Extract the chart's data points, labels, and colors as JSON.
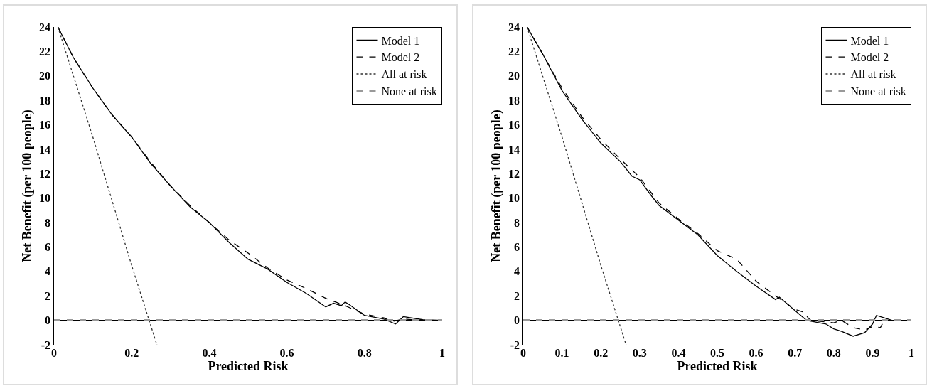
{
  "chart_data": [
    {
      "type": "line",
      "xlabel": "Predicted Risk",
      "ylabel": "Net Benefit (per 100 people)",
      "xlim": [
        0,
        1
      ],
      "ylim": [
        -2,
        24
      ],
      "xticks": [
        0,
        0.2,
        0.4,
        0.6,
        0.8,
        1
      ],
      "yticks": [
        -2,
        0,
        2,
        4,
        6,
        8,
        10,
        12,
        14,
        16,
        18,
        20,
        22,
        24
      ],
      "grid": false,
      "legend": "top right",
      "series": [
        {
          "name": "Model 1",
          "color": "#000000",
          "line_style": "solid",
          "x": [
            0.01,
            0.05,
            0.1,
            0.15,
            0.2,
            0.25,
            0.3,
            0.35,
            0.4,
            0.45,
            0.5,
            0.55,
            0.6,
            0.65,
            0.7,
            0.72,
            0.74,
            0.75,
            0.76,
            0.8,
            0.85,
            0.88,
            0.9,
            0.95,
            1
          ],
          "values": [
            24,
            21.5,
            19,
            16.8,
            15,
            12.8,
            11,
            9.3,
            8,
            6.4,
            5,
            4.2,
            3.1,
            2.2,
            1.1,
            1.4,
            1.2,
            1.5,
            1.3,
            0.4,
            0.1,
            -0.3,
            0.3,
            0.05,
            0
          ]
        },
        {
          "name": "Model 2",
          "color": "#000000",
          "line_style": "dashed",
          "x": [
            0.01,
            0.05,
            0.1,
            0.15,
            0.2,
            0.25,
            0.3,
            0.35,
            0.4,
            0.45,
            0.5,
            0.55,
            0.6,
            0.65,
            0.7,
            0.75,
            0.8,
            0.85,
            0.87,
            0.9,
            0.95,
            1
          ],
          "values": [
            24,
            21.5,
            19,
            16.8,
            15,
            12.9,
            11,
            9.4,
            8,
            6.6,
            5.5,
            4.3,
            3.3,
            2.6,
            1.8,
            1.2,
            0.5,
            0.2,
            -0.1,
            0.1,
            0,
            0
          ]
        },
        {
          "name": "All at risk",
          "color": "#333333",
          "line_style": "dotted",
          "x": [
            0.01,
            0.1,
            0.2,
            0.265
          ],
          "values": [
            24,
            15,
            4.5,
            -2
          ]
        },
        {
          "name": "None at risk",
          "color": "#999999",
          "line_style": "dashed",
          "x": [
            0,
            1
          ],
          "values": [
            0,
            0
          ]
        }
      ]
    },
    {
      "type": "line",
      "xlabel": "Predicted Risk",
      "ylabel": "Net Benefit (per 100 people)",
      "xlim": [
        0,
        1
      ],
      "ylim": [
        -2,
        24
      ],
      "xticks": [
        0,
        0.1,
        0.2,
        0.3,
        0.4,
        0.5,
        0.6,
        0.7,
        0.8,
        0.9,
        1
      ],
      "yticks": [
        -2,
        0,
        2,
        4,
        6,
        8,
        10,
        12,
        14,
        16,
        18,
        20,
        22,
        24
      ],
      "grid": false,
      "legend": "top right",
      "series": [
        {
          "name": "Model 1",
          "color": "#000000",
          "line_style": "solid",
          "x": [
            0.01,
            0.05,
            0.1,
            0.15,
            0.2,
            0.25,
            0.28,
            0.3,
            0.33,
            0.35,
            0.4,
            0.45,
            0.5,
            0.55,
            0.6,
            0.65,
            0.66,
            0.7,
            0.73,
            0.78,
            0.8,
            0.82,
            0.85,
            0.88,
            0.9,
            0.91,
            0.93,
            0.95,
            1
          ],
          "values": [
            24,
            21.8,
            18.8,
            16.5,
            14.5,
            13,
            11.8,
            11.5,
            10.2,
            9.4,
            8.2,
            7,
            5.3,
            4,
            2.8,
            1.7,
            1.9,
            0.8,
            0,
            -0.3,
            -0.7,
            -0.9,
            -1.3,
            -1,
            -0.3,
            0.4,
            0.2,
            0,
            0
          ]
        },
        {
          "name": "Model 2",
          "color": "#000000",
          "line_style": "dashed",
          "x": [
            0.01,
            0.05,
            0.1,
            0.15,
            0.2,
            0.25,
            0.3,
            0.35,
            0.4,
            0.45,
            0.5,
            0.55,
            0.6,
            0.65,
            0.7,
            0.72,
            0.74,
            0.8,
            0.82,
            0.85,
            0.88,
            0.9,
            0.92,
            0.93,
            0.95,
            1
          ],
          "values": [
            24,
            21.8,
            19,
            16.7,
            14.8,
            13.2,
            11.7,
            9.6,
            8.3,
            7.1,
            5.7,
            5,
            3.2,
            2,
            0.9,
            0.7,
            0,
            -0.2,
            0,
            -0.6,
            -0.8,
            -0.5,
            -0.6,
            0,
            0,
            0
          ]
        },
        {
          "name": "All at risk",
          "color": "#333333",
          "line_style": "dotted",
          "x": [
            0.01,
            0.1,
            0.2,
            0.265
          ],
          "values": [
            24,
            15,
            4.5,
            -2
          ]
        },
        {
          "name": "None at risk",
          "color": "#999999",
          "line_style": "dashed",
          "x": [
            0,
            1
          ],
          "values": [
            0,
            0
          ]
        }
      ]
    }
  ]
}
